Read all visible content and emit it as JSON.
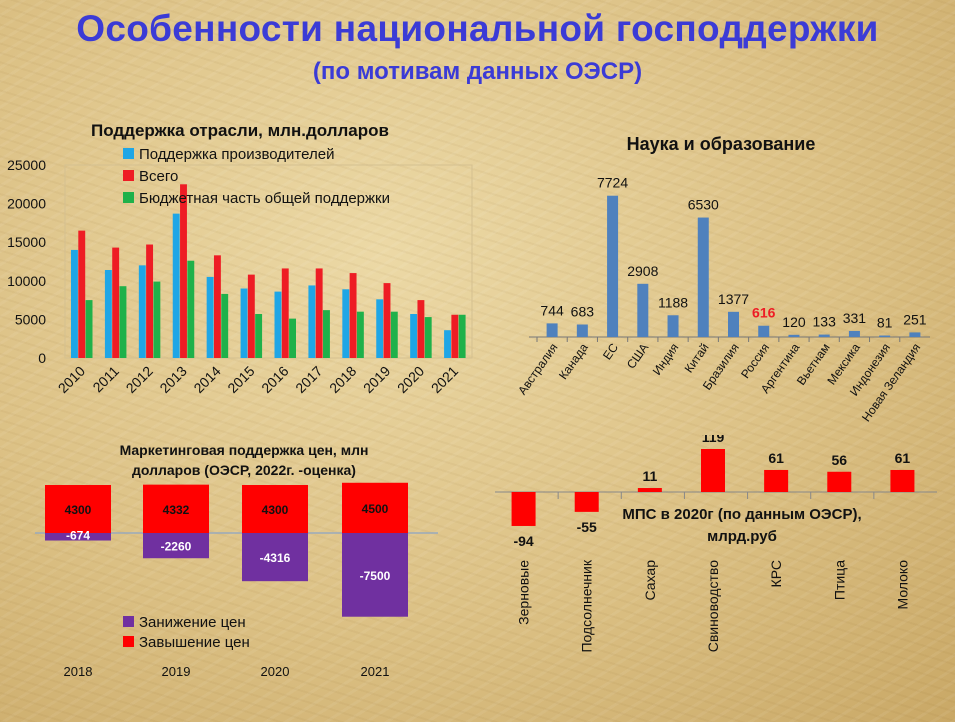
{
  "page": {
    "title": "Особенности национальной господдержки",
    "subtitle": "(по мотивам данных ОЭСР)"
  },
  "colors": {
    "title": "#3b3bd6",
    "producer": "#1fa6e6",
    "total": "#ee1c24",
    "budget": "#1fb14a",
    "science_bar": "#4f81bd",
    "highlight_label": "#ee1c24",
    "overprice": "#ff0000",
    "underprice": "#7030a0"
  },
  "chart_data": [
    {
      "id": "industry",
      "type": "bar",
      "title": "Поддержка отрасли, млн.долларов",
      "categories": [
        "2010",
        "2011",
        "2012",
        "2013",
        "2014",
        "2015",
        "2016",
        "2017",
        "2018",
        "2019",
        "2020",
        "2021"
      ],
      "series": [
        {
          "name": "Поддержка производителей",
          "values": [
            14000,
            11400,
            12000,
            18700,
            10500,
            9000,
            8600,
            9400,
            8900,
            7600,
            5700,
            3600
          ]
        },
        {
          "name": "Всего",
          "values": [
            16500,
            14300,
            14700,
            22500,
            13300,
            10800,
            11600,
            11600,
            11000,
            9700,
            7500,
            5600
          ]
        },
        {
          "name": "Бюджетная часть общей поддержки",
          "values": [
            7500,
            9300,
            9900,
            12600,
            8300,
            5700,
            5100,
            6200,
            6000,
            6000,
            5300,
            5600
          ]
        }
      ],
      "yticks": [
        "0",
        "5000",
        "10000",
        "15000",
        "20000",
        "25000"
      ],
      "ylim": [
        0,
        25000
      ],
      "legend": "top"
    },
    {
      "id": "science",
      "type": "bar",
      "title": "Наука и образование",
      "categories": [
        "Австралия",
        "Канада",
        "ЕС",
        "США",
        "Индия",
        "Китай",
        "Бразилия",
        "Россия",
        "Аргентина",
        "Вьетнам",
        "Мексика",
        "Индонезия",
        "Новая Зеландия"
      ],
      "values": [
        744,
        683,
        7724,
        2908,
        1188,
        6530,
        1377,
        616,
        120,
        133,
        331,
        81,
        251
      ],
      "data_labels": [
        "744",
        "683",
        "7724",
        "2908",
        "1188",
        "6530",
        "1377",
        "616",
        "120",
        "133",
        "331",
        "81",
        "251"
      ],
      "highlight": "Россия",
      "ylim": [
        0,
        8200
      ]
    },
    {
      "id": "marketing",
      "type": "bar",
      "title_line1": "Маркетинговая поддержка цен, млн",
      "title_line2": "долларов (ОЭСР, 2022г. -оценка)",
      "categories": [
        "2018",
        "2019",
        "2020",
        "2021"
      ],
      "series": [
        {
          "name": "Занижение цен",
          "values": [
            -674,
            -2260,
            -4316,
            -7500
          ],
          "labels": [
            "-674",
            "-2260",
            "-4316",
            "-7500"
          ]
        },
        {
          "name": "Завышение цен",
          "values": [
            4300,
            4332,
            4300,
            4500
          ],
          "labels": [
            "4300",
            "4332",
            "4300",
            "4500"
          ]
        }
      ],
      "legend": "bottom-left"
    },
    {
      "id": "mps",
      "type": "bar",
      "title_line1": "МПС в 2020г (по данным ОЭСР),",
      "title_line2": "млрд.руб",
      "categories": [
        "Зерновые",
        "Подсолнечник",
        "Сахар",
        "Свиноводство",
        "КРС",
        "Птица",
        "Молоко"
      ],
      "values": [
        -94,
        -55,
        11,
        119,
        61,
        56,
        61
      ],
      "data_labels": [
        "-94",
        "-55",
        "11",
        "119",
        "61",
        "56",
        "61"
      ]
    }
  ]
}
